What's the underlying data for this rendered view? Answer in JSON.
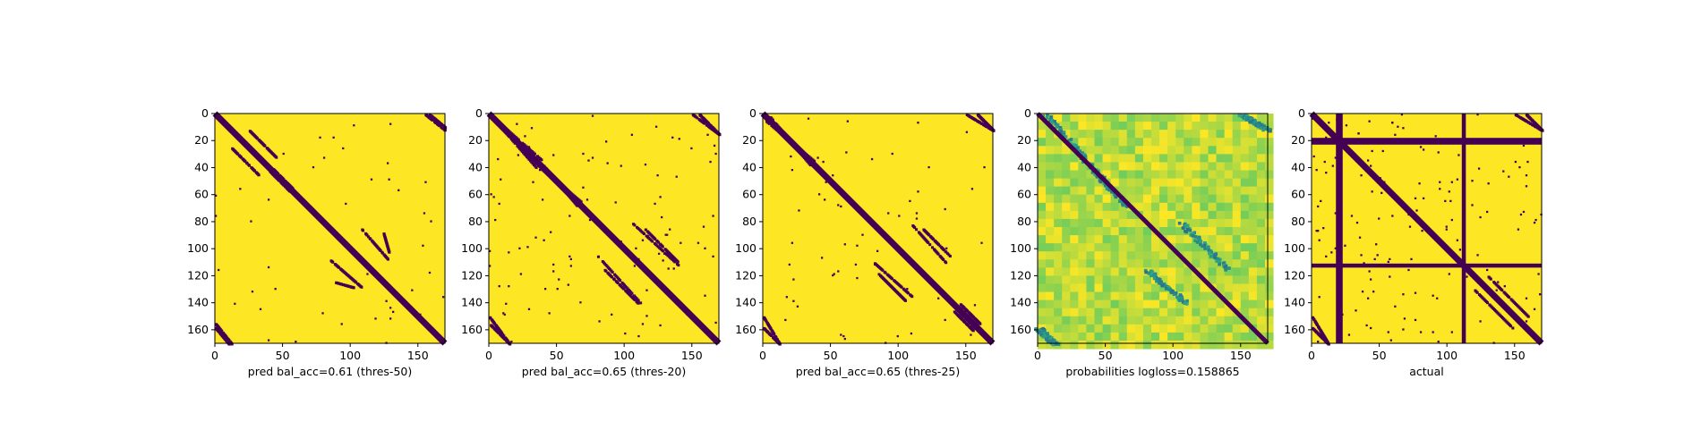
{
  "figure": {
    "background": "#ffffff"
  },
  "colormap": {
    "name": "viridis",
    "low": "#440154",
    "high": "#fde725"
  },
  "chart_data": [
    {
      "type": "heatmap",
      "id": "pred50",
      "xlabel": "pred bal_acc=0.61 (thres-50)",
      "xlim": [
        0,
        170
      ],
      "ylim": [
        170,
        0
      ],
      "xticks": [
        0,
        50,
        100,
        150
      ],
      "yticks": [
        0,
        20,
        40,
        60,
        80,
        100,
        120,
        140,
        160
      ],
      "binary": true,
      "main_diagonal": true,
      "hbands": [],
      "vbands": [],
      "bands": [
        {
          "x": [
            25,
            45
          ],
          "y": [
            12,
            32
          ]
        },
        {
          "x": [
            40,
            55
          ],
          "y": [
            42,
            57
          ]
        },
        {
          "x": [
            108,
            128
          ],
          "y": [
            85,
            108
          ]
        },
        {
          "x": [
            88,
            102
          ],
          "y": [
            124,
            128
          ]
        },
        {
          "x": [
            155,
            170
          ],
          "y": [
            0,
            12
          ]
        },
        {
          "x": [
            0,
            10
          ],
          "y": [
            158,
            170
          ]
        }
      ],
      "density": 0.03
    },
    {
      "type": "heatmap",
      "id": "pred20",
      "xlabel": "pred bal_acc=0.65 (thres-20)",
      "xlim": [
        0,
        170
      ],
      "ylim": [
        170,
        0
      ],
      "xticks": [
        0,
        50,
        100,
        150
      ],
      "yticks": [
        0,
        20,
        40,
        60,
        80,
        100,
        120,
        140,
        160
      ],
      "binary": true,
      "main_diagonal": true,
      "hbands": [],
      "vbands": [],
      "bands": [
        {
          "x": [
            0,
            35
          ],
          "y": [
            0,
            40
          ]
        },
        {
          "x": [
            40,
            65
          ],
          "y": [
            38,
            68
          ]
        },
        {
          "x": [
            105,
            140
          ],
          "y": [
            80,
            112
          ]
        },
        {
          "x": [
            85,
            110
          ],
          "y": [
            115,
            140
          ]
        },
        {
          "x": [
            150,
            170
          ],
          "y": [
            0,
            15
          ]
        },
        {
          "x": [
            0,
            15
          ],
          "y": [
            155,
            170
          ]
        },
        {
          "x": [
            140,
            160
          ],
          "y": [
            140,
            160
          ]
        }
      ],
      "density": 0.07
    },
    {
      "type": "heatmap",
      "id": "pred25",
      "xlabel": "pred bal_acc=0.65 (thres-25)",
      "xlim": [
        0,
        170
      ],
      "ylim": [
        170,
        0
      ],
      "xticks": [
        0,
        50,
        100,
        150
      ],
      "yticks": [
        0,
        20,
        40,
        60,
        80,
        100,
        120,
        140,
        160
      ],
      "binary": true,
      "main_diagonal": true,
      "hbands": [],
      "vbands": [],
      "bands": [
        {
          "x": [
            5,
            35
          ],
          "y": [
            2,
            38
          ]
        },
        {
          "x": [
            40,
            65
          ],
          "y": [
            40,
            66
          ]
        },
        {
          "x": [
            110,
            135
          ],
          "y": [
            82,
            110
          ]
        },
        {
          "x": [
            85,
            105
          ],
          "y": [
            118,
            138
          ]
        },
        {
          "x": [
            150,
            170
          ],
          "y": [
            0,
            12
          ]
        },
        {
          "x": [
            0,
            12
          ],
          "y": [
            158,
            170
          ]
        },
        {
          "x": [
            145,
            160
          ],
          "y": [
            140,
            155
          ]
        }
      ],
      "density": 0.04
    },
    {
      "type": "heatmap",
      "id": "probabilities",
      "xlabel": "probabilities logloss=0.158865",
      "xlim": [
        0,
        170
      ],
      "ylim": [
        170,
        0
      ],
      "xticks": [
        0,
        50,
        100,
        150
      ],
      "yticks": [
        0,
        20,
        40,
        60,
        80,
        100,
        120,
        140,
        160
      ],
      "binary": false,
      "main_diagonal": true,
      "hbands": [],
      "vbands": [],
      "bands": [
        {
          "x": [
            5,
            40
          ],
          "y": [
            0,
            40
          ]
        },
        {
          "x": [
            40,
            65
          ],
          "y": [
            40,
            68
          ]
        },
        {
          "x": [
            105,
            140
          ],
          "y": [
            80,
            115
          ]
        },
        {
          "x": [
            80,
            110
          ],
          "y": [
            115,
            140
          ]
        },
        {
          "x": [
            150,
            170
          ],
          "y": [
            0,
            12
          ]
        },
        {
          "x": [
            0,
            12
          ],
          "y": [
            158,
            170
          ]
        }
      ],
      "density": 0.0
    },
    {
      "type": "heatmap",
      "id": "actual",
      "xlabel": "actual",
      "xlim": [
        0,
        170
      ],
      "ylim": [
        170,
        0
      ],
      "xticks": [
        0,
        50,
        100,
        150
      ],
      "yticks": [
        0,
        20,
        40,
        60,
        80,
        100,
        120,
        140,
        160
      ],
      "binary": true,
      "main_diagonal": true,
      "hbands": [
        [
          18,
          23
        ],
        [
          111,
          114
        ]
      ],
      "vbands": [
        [
          18,
          23
        ],
        [
          111,
          114
        ]
      ],
      "bands": [
        {
          "x": [
            0,
            40
          ],
          "y": [
            0,
            40
          ]
        },
        {
          "x": [
            40,
            75
          ],
          "y": [
            40,
            75
          ]
        },
        {
          "x": [
            150,
            170
          ],
          "y": [
            0,
            12
          ]
        },
        {
          "x": [
            0,
            12
          ],
          "y": [
            158,
            170
          ]
        },
        {
          "x": [
            130,
            160
          ],
          "y": [
            120,
            150
          ]
        }
      ],
      "density": 0.1
    }
  ]
}
